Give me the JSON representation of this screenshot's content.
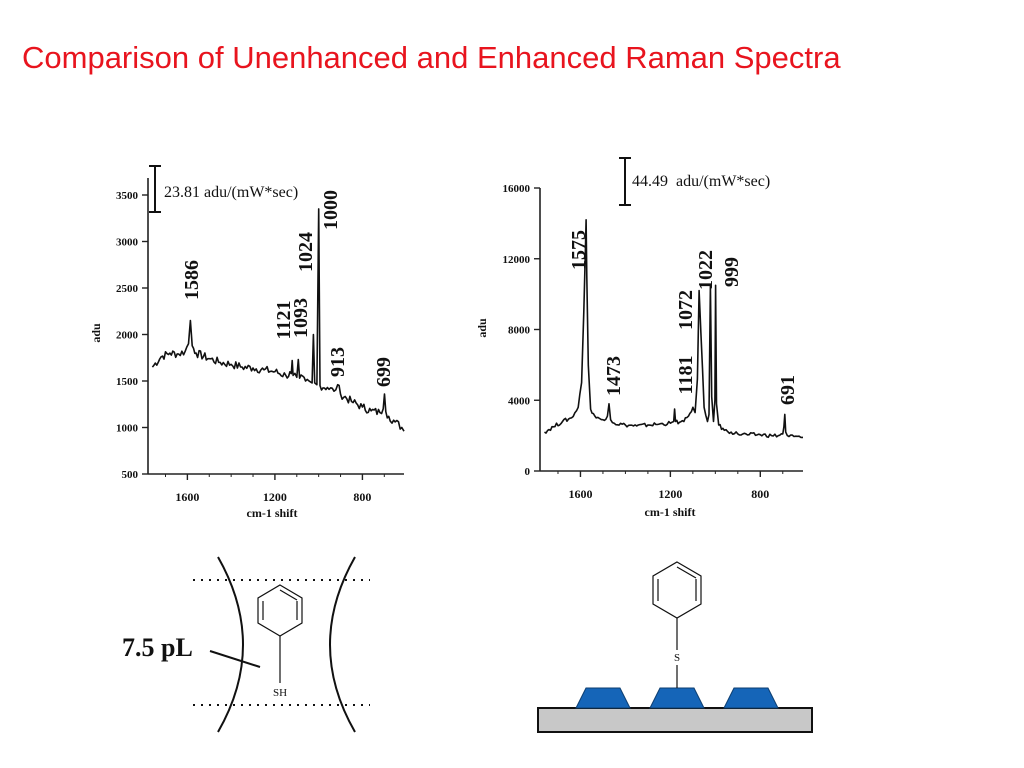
{
  "title": "Comparison of Unenhanced and Enhanced Raman Spectra",
  "colors": {
    "title": "#e8141e",
    "spectrum": "#111111",
    "nanoparticle": "#1565b8",
    "substrate": "#c8c8c8"
  },
  "chart_data": [
    {
      "type": "line",
      "id": "unenhanced",
      "xlabel": "cm-1 shift",
      "ylabel": "adu",
      "x_reversed": true,
      "xlim": [
        1780,
        610
      ],
      "ylim": [
        500,
        3500
      ],
      "x_ticks": [
        1600,
        1200,
        800
      ],
      "y_ticks": [
        500,
        1000,
        1500,
        2000,
        2500,
        3000,
        3500
      ],
      "scale_bar": "23.81 adu/(mW*sec)",
      "peak_labels": [
        "1586",
        "1121",
        "1093",
        "1024",
        "1000",
        "913",
        "699"
      ],
      "series": [
        {
          "x": [
            1760,
            1720,
            1680,
            1640,
            1610,
            1595,
            1586,
            1578,
            1560,
            1500,
            1450,
            1400,
            1350,
            1300,
            1250,
            1200,
            1150,
            1125,
            1121,
            1117,
            1100,
            1093,
            1087,
            1060,
            1030,
            1024,
            1018,
            1008,
            1000,
            994,
            960,
            930,
            913,
            900,
            850,
            800,
            760,
            720,
            705,
            699,
            693,
            680,
            650,
            620,
            610
          ],
          "y": [
            1650,
            1760,
            1800,
            1790,
            1820,
            1900,
            2150,
            1880,
            1800,
            1740,
            1700,
            1680,
            1650,
            1640,
            1620,
            1600,
            1560,
            1580,
            1720,
            1560,
            1540,
            1730,
            1530,
            1500,
            1480,
            2000,
            1480,
            1460,
            3350,
            1450,
            1430,
            1390,
            1460,
            1360,
            1280,
            1220,
            1180,
            1160,
            1200,
            1360,
            1170,
            1120,
            1060,
            1000,
            960
          ]
        }
      ]
    },
    {
      "type": "line",
      "id": "enhanced",
      "xlabel": "cm-1 shift",
      "ylabel": "adu",
      "x_reversed": true,
      "xlim": [
        1780,
        610
      ],
      "ylim": [
        0,
        16000
      ],
      "x_ticks": [
        1600,
        1200,
        800
      ],
      "y_ticks": [
        0,
        4000,
        8000,
        12000,
        16000
      ],
      "scale_bar": "44.49  adu/(mW*sec)",
      "peak_labels": [
        "1575",
        "1473",
        "1181",
        "1072",
        "1022",
        "999",
        "691"
      ],
      "series": [
        {
          "x": [
            1760,
            1720,
            1680,
            1640,
            1610,
            1595,
            1585,
            1578,
            1575,
            1572,
            1565,
            1555,
            1530,
            1500,
            1480,
            1473,
            1466,
            1450,
            1400,
            1350,
            1300,
            1250,
            1200,
            1185,
            1181,
            1177,
            1160,
            1140,
            1120,
            1100,
            1090,
            1080,
            1072,
            1064,
            1050,
            1035,
            1028,
            1022,
            1016,
            1008,
            1002,
            999,
            995,
            985,
            960,
            930,
            900,
            850,
            800,
            750,
            720,
            700,
            695,
            691,
            687,
            680,
            650,
            620,
            610
          ],
          "y": [
            2200,
            2500,
            2800,
            3000,
            3600,
            5000,
            9000,
            12500,
            14200,
            11000,
            6000,
            3500,
            3000,
            2900,
            3100,
            3800,
            2900,
            2700,
            2600,
            2550,
            2600,
            2650,
            2700,
            2800,
            3500,
            2800,
            2750,
            2800,
            3100,
            3600,
            3300,
            5200,
            10200,
            7800,
            3600,
            2800,
            3200,
            10500,
            4200,
            2800,
            4000,
            10500,
            3800,
            2600,
            2300,
            2200,
            2100,
            2050,
            2050,
            2000,
            2000,
            2100,
            2500,
            3200,
            2200,
            2000,
            1950,
            1900,
            1900
          ]
        }
      ]
    }
  ],
  "diagram": {
    "volume_label": "7.5 pL",
    "thiol_label": "SH",
    "sulfur_label": "S"
  }
}
